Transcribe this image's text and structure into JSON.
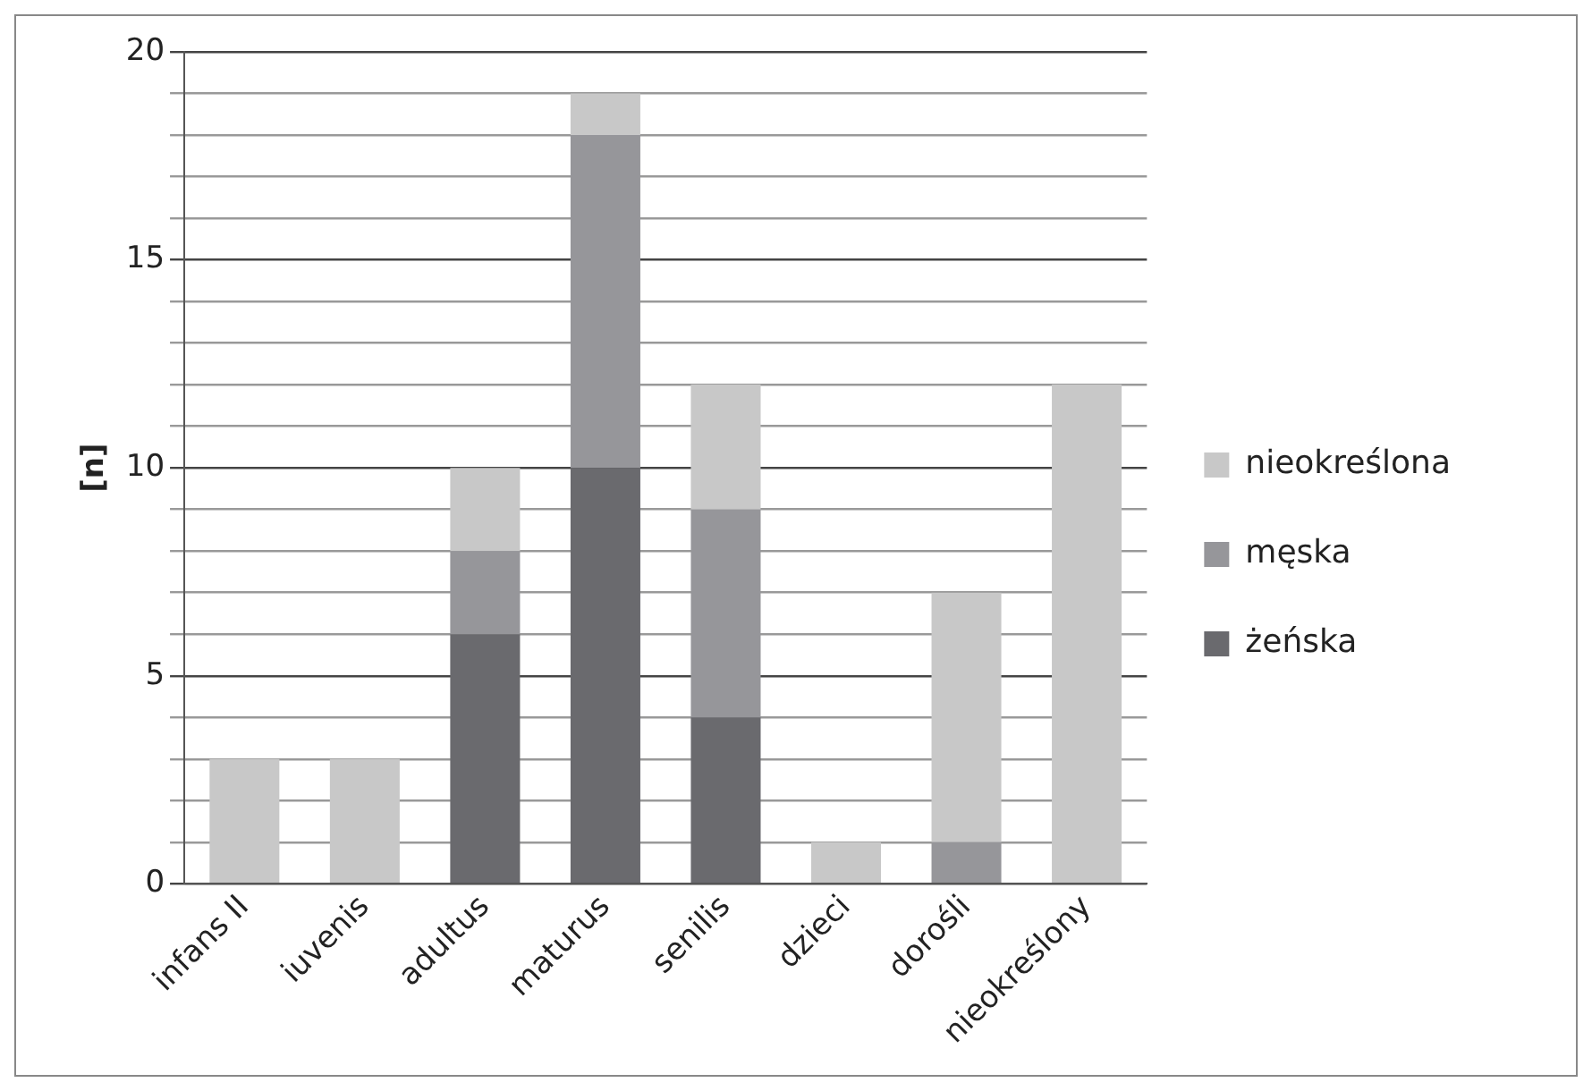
{
  "chart_data": {
    "type": "bar",
    "stacked": true,
    "ylabel": "[n]",
    "categories": [
      "infans II",
      "iuvenis",
      "adultus",
      "maturus",
      "senilis",
      "dzieci",
      "dorośli",
      "nieokreślony"
    ],
    "series": [
      {
        "name": "żeńska",
        "color": "#6a6a6e",
        "values": [
          0,
          0,
          6,
          10,
          4,
          0,
          0,
          0
        ]
      },
      {
        "name": "męska",
        "color": "#96969a",
        "values": [
          0,
          0,
          2,
          8,
          5,
          0,
          1,
          0
        ]
      },
      {
        "name": "nieokreślona",
        "color": "#c8c8c8",
        "values": [
          3,
          3,
          2,
          1,
          3,
          1,
          6,
          12
        ]
      }
    ],
    "ylim": [
      0,
      20
    ],
    "yticks": [
      0,
      {
        "value": 1,
        "label": null
      },
      {
        "value": 2,
        "label": null
      },
      {
        "value": 3,
        "label": null
      },
      {
        "value": 4,
        "label": null
      },
      5,
      {
        "value": 6,
        "label": null
      },
      {
        "value": 7,
        "label": null
      },
      {
        "value": 8,
        "label": null
      },
      {
        "value": 9,
        "label": null
      },
      10,
      {
        "value": 11,
        "label": null
      },
      {
        "value": 12,
        "label": null
      },
      {
        "value": 13,
        "label": null
      },
      {
        "value": 14,
        "label": null
      },
      15,
      {
        "value": 16,
        "label": null
      },
      {
        "value": 17,
        "label": null
      },
      {
        "value": 18,
        "label": null
      },
      {
        "value": 19,
        "label": null
      },
      20
    ],
    "grid": "y",
    "legend": "right"
  }
}
